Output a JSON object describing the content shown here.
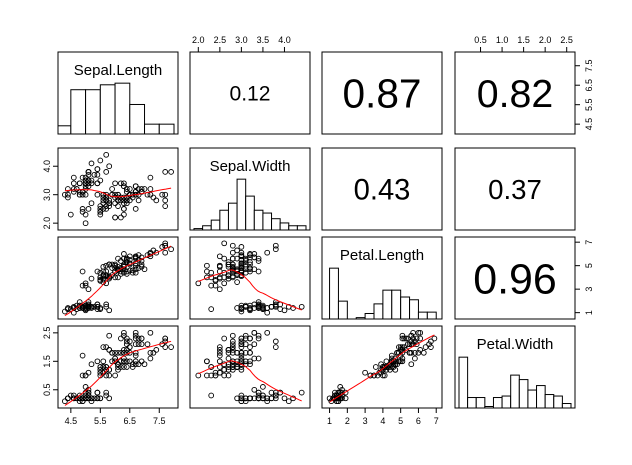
{
  "chart_data": {
    "type": "scatter-matrix",
    "variables": [
      "Sepal.Length",
      "Sepal.Width",
      "Petal.Length",
      "Petal.Width"
    ],
    "correlations": [
      {
        "row": 0,
        "col": 1,
        "text": "0.12",
        "abs": 0.12
      },
      {
        "row": 0,
        "col": 2,
        "text": "0.87",
        "abs": 0.87
      },
      {
        "row": 0,
        "col": 3,
        "text": "0.82",
        "abs": 0.82
      },
      {
        "row": 1,
        "col": 2,
        "text": "0.43",
        "abs": 0.43
      },
      {
        "row": 1,
        "col": 3,
        "text": "0.37",
        "abs": 0.37
      },
      {
        "row": 2,
        "col": 3,
        "text": "0.96",
        "abs": 0.96
      }
    ],
    "axes": [
      {
        "variable": "Sepal.Length",
        "side": "bottom",
        "lim": [
          4.2,
          8.0
        ],
        "ticks": [
          4.5,
          5.5,
          6.5,
          7.5
        ],
        "tick_labels": [
          "4.5",
          "5.5",
          "6.5",
          "7.5"
        ]
      },
      {
        "variable": "Sepal.Width",
        "side": "top",
        "lim": [
          1.9,
          4.5
        ],
        "ticks": [
          2.0,
          2.5,
          3.0,
          3.5,
          4.0
        ],
        "tick_labels": [
          "2.0",
          "2.5",
          "3.0",
          "3.5",
          "4.0"
        ]
      },
      {
        "variable": "Petal.Length",
        "side": "bottom",
        "lim": [
          0.8,
          7.1
        ],
        "ticks": [
          1,
          2,
          3,
          4,
          5,
          6,
          7
        ],
        "tick_labels": [
          "1",
          "2",
          "3",
          "4",
          "5",
          "6",
          "7"
        ]
      },
      {
        "variable": "Petal.Width",
        "side": "top",
        "lim": [
          0.0,
          2.6
        ],
        "ticks": [
          0.5,
          1.0,
          1.5,
          2.0,
          2.5
        ],
        "tick_labels": [
          "0.5",
          "1.0",
          "1.5",
          "2.0",
          "2.5"
        ]
      },
      {
        "variable": "Sepal.Length",
        "side": "right",
        "lim": [
          4.2,
          8.0
        ],
        "ticks": [
          4.5,
          5.5,
          6.5,
          7.5
        ],
        "tick_labels": [
          "4.5",
          "5.5",
          "6.5",
          "7.5"
        ]
      },
      {
        "variable": "Sepal.Width",
        "side": "left",
        "lim": [
          1.9,
          4.5
        ],
        "ticks": [
          2.0,
          3.0,
          4.0
        ],
        "tick_labels": [
          "2.0",
          "3.0",
          "4.0"
        ]
      },
      {
        "variable": "Petal.Length",
        "side": "right",
        "lim": [
          0.8,
          7.1
        ],
        "ticks": [
          1,
          3,
          5,
          7
        ],
        "tick_labels": [
          "1",
          "3",
          "5",
          "7"
        ]
      },
      {
        "variable": "Petal.Width",
        "side": "left",
        "lim": [
          0.0,
          2.6
        ],
        "ticks": [
          0.5,
          1.5,
          2.5
        ],
        "tick_labels": [
          "0.5",
          "1.5",
          "2.5"
        ]
      }
    ],
    "histograms": {
      "Sepal.Length": [
        {
          "from": 4.0,
          "to": 4.5,
          "count": 5
        },
        {
          "from": 4.5,
          "to": 5.0,
          "count": 27
        },
        {
          "from": 5.0,
          "to": 5.5,
          "count": 27
        },
        {
          "from": 5.5,
          "to": 6.0,
          "count": 30
        },
        {
          "from": 6.0,
          "to": 6.5,
          "count": 31
        },
        {
          "from": 6.5,
          "to": 7.0,
          "count": 18
        },
        {
          "from": 7.0,
          "to": 7.5,
          "count": 6
        },
        {
          "from": 7.5,
          "to": 8.0,
          "count": 6
        }
      ],
      "Sepal.Width": [
        {
          "from": 1.9,
          "to": 2.1,
          "count": 1
        },
        {
          "from": 2.1,
          "to": 2.3,
          "count": 3
        },
        {
          "from": 2.3,
          "to": 2.5,
          "count": 7
        },
        {
          "from": 2.5,
          "to": 2.7,
          "count": 14
        },
        {
          "from": 2.7,
          "to": 2.9,
          "count": 19
        },
        {
          "from": 2.9,
          "to": 3.1,
          "count": 36
        },
        {
          "from": 3.1,
          "to": 3.3,
          "count": 24
        },
        {
          "from": 3.3,
          "to": 3.5,
          "count": 14
        },
        {
          "from": 3.5,
          "to": 3.7,
          "count": 12
        },
        {
          "from": 3.7,
          "to": 3.9,
          "count": 8
        },
        {
          "from": 3.9,
          "to": 4.1,
          "count": 5
        },
        {
          "from": 4.1,
          "to": 4.3,
          "count": 3
        },
        {
          "from": 4.3,
          "to": 4.5,
          "count": 3
        }
      ],
      "Petal.Length": [
        {
          "from": 1.0,
          "to": 1.5,
          "count": 37
        },
        {
          "from": 1.5,
          "to": 2.0,
          "count": 13
        },
        {
          "from": 2.5,
          "to": 3.0,
          "count": 1
        },
        {
          "from": 3.0,
          "to": 3.5,
          "count": 4
        },
        {
          "from": 3.5,
          "to": 4.0,
          "count": 11
        },
        {
          "from": 4.0,
          "to": 4.5,
          "count": 21
        },
        {
          "from": 4.5,
          "to": 5.0,
          "count": 21
        },
        {
          "from": 5.0,
          "to": 5.5,
          "count": 16
        },
        {
          "from": 5.5,
          "to": 6.0,
          "count": 14
        },
        {
          "from": 6.0,
          "to": 6.5,
          "count": 5
        },
        {
          "from": 6.5,
          "to": 7.0,
          "count": 5
        }
      ],
      "Petal.Width": [
        {
          "from": 0.0,
          "to": 0.2,
          "count": 34
        },
        {
          "from": 0.2,
          "to": 0.4,
          "count": 7
        },
        {
          "from": 0.4,
          "to": 0.6,
          "count": 7
        },
        {
          "from": 0.6,
          "to": 0.8,
          "count": 1
        },
        {
          "from": 0.8,
          "to": 1.0,
          "count": 7
        },
        {
          "from": 1.0,
          "to": 1.2,
          "count": 8
        },
        {
          "from": 1.2,
          "to": 1.4,
          "count": 22
        },
        {
          "from": 1.4,
          "to": 1.6,
          "count": 19
        },
        {
          "from": 1.6,
          "to": 1.8,
          "count": 12
        },
        {
          "from": 1.8,
          "to": 2.0,
          "count": 15
        },
        {
          "from": 2.0,
          "to": 2.2,
          "count": 9
        },
        {
          "from": 2.2,
          "to": 2.4,
          "count": 8
        },
        {
          "from": 2.4,
          "to": 2.6,
          "count": 3
        }
      ]
    },
    "observations": [
      [
        5.1,
        3.5,
        1.4,
        0.2
      ],
      [
        4.9,
        3.0,
        1.4,
        0.2
      ],
      [
        4.7,
        3.2,
        1.3,
        0.2
      ],
      [
        4.6,
        3.1,
        1.5,
        0.2
      ],
      [
        5.0,
        3.6,
        1.4,
        0.2
      ],
      [
        5.4,
        3.9,
        1.7,
        0.4
      ],
      [
        4.6,
        3.4,
        1.4,
        0.3
      ],
      [
        5.0,
        3.4,
        1.5,
        0.2
      ],
      [
        4.4,
        2.9,
        1.4,
        0.2
      ],
      [
        4.9,
        3.1,
        1.5,
        0.1
      ],
      [
        5.4,
        3.7,
        1.5,
        0.2
      ],
      [
        4.8,
        3.4,
        1.6,
        0.2
      ],
      [
        4.8,
        3.0,
        1.4,
        0.1
      ],
      [
        4.3,
        3.0,
        1.1,
        0.1
      ],
      [
        5.8,
        4.0,
        1.2,
        0.2
      ],
      [
        5.7,
        4.4,
        1.5,
        0.4
      ],
      [
        5.4,
        3.9,
        1.3,
        0.4
      ],
      [
        5.1,
        3.5,
        1.4,
        0.3
      ],
      [
        5.7,
        3.8,
        1.7,
        0.3
      ],
      [
        5.1,
        3.8,
        1.5,
        0.3
      ],
      [
        5.4,
        3.4,
        1.7,
        0.2
      ],
      [
        5.1,
        3.7,
        1.5,
        0.4
      ],
      [
        4.6,
        3.6,
        1.0,
        0.2
      ],
      [
        5.1,
        3.3,
        1.7,
        0.5
      ],
      [
        4.8,
        3.4,
        1.9,
        0.2
      ],
      [
        5.0,
        3.0,
        1.6,
        0.2
      ],
      [
        5.0,
        3.4,
        1.6,
        0.4
      ],
      [
        5.2,
        3.5,
        1.5,
        0.2
      ],
      [
        5.2,
        3.4,
        1.4,
        0.2
      ],
      [
        4.7,
        3.2,
        1.6,
        0.2
      ],
      [
        4.8,
        3.1,
        1.6,
        0.2
      ],
      [
        5.4,
        3.4,
        1.5,
        0.4
      ],
      [
        5.2,
        4.1,
        1.5,
        0.1
      ],
      [
        5.5,
        4.2,
        1.4,
        0.2
      ],
      [
        4.9,
        3.1,
        1.5,
        0.2
      ],
      [
        5.0,
        3.2,
        1.2,
        0.2
      ],
      [
        5.5,
        3.5,
        1.3,
        0.2
      ],
      [
        4.9,
        3.6,
        1.4,
        0.1
      ],
      [
        4.4,
        3.0,
        1.3,
        0.2
      ],
      [
        5.1,
        3.4,
        1.5,
        0.2
      ],
      [
        5.0,
        3.5,
        1.3,
        0.3
      ],
      [
        4.5,
        2.3,
        1.3,
        0.3
      ],
      [
        4.4,
        3.2,
        1.3,
        0.2
      ],
      [
        5.0,
        3.5,
        1.6,
        0.6
      ],
      [
        5.1,
        3.8,
        1.9,
        0.4
      ],
      [
        4.8,
        3.0,
        1.4,
        0.3
      ],
      [
        5.1,
        3.8,
        1.6,
        0.2
      ],
      [
        4.6,
        3.2,
        1.4,
        0.2
      ],
      [
        5.3,
        3.7,
        1.5,
        0.2
      ],
      [
        5.0,
        3.3,
        1.4,
        0.2
      ],
      [
        7.0,
        3.2,
        4.7,
        1.4
      ],
      [
        6.4,
        3.2,
        4.5,
        1.5
      ],
      [
        6.9,
        3.1,
        4.9,
        1.5
      ],
      [
        5.5,
        2.3,
        4.0,
        1.3
      ],
      [
        6.5,
        2.8,
        4.6,
        1.5
      ],
      [
        5.7,
        2.8,
        4.5,
        1.3
      ],
      [
        6.3,
        3.3,
        4.7,
        1.6
      ],
      [
        4.9,
        2.4,
        3.3,
        1.0
      ],
      [
        6.6,
        2.9,
        4.6,
        1.3
      ],
      [
        5.2,
        2.7,
        3.9,
        1.4
      ],
      [
        5.0,
        2.0,
        3.5,
        1.0
      ],
      [
        5.9,
        3.0,
        4.2,
        1.5
      ],
      [
        6.0,
        2.2,
        4.0,
        1.0
      ],
      [
        6.1,
        2.9,
        4.7,
        1.4
      ],
      [
        5.6,
        2.9,
        3.6,
        1.3
      ],
      [
        6.7,
        3.1,
        4.4,
        1.4
      ],
      [
        5.6,
        3.0,
        4.5,
        1.5
      ],
      [
        5.8,
        2.7,
        4.1,
        1.0
      ],
      [
        6.2,
        2.2,
        4.5,
        1.5
      ],
      [
        5.6,
        2.5,
        3.9,
        1.1
      ],
      [
        5.9,
        3.2,
        4.8,
        1.8
      ],
      [
        6.1,
        2.8,
        4.0,
        1.3
      ],
      [
        6.3,
        2.5,
        4.9,
        1.5
      ],
      [
        6.1,
        2.8,
        4.7,
        1.2
      ],
      [
        6.4,
        2.9,
        4.3,
        1.3
      ],
      [
        6.6,
        3.0,
        4.4,
        1.4
      ],
      [
        6.8,
        2.8,
        4.8,
        1.4
      ],
      [
        6.7,
        3.0,
        5.0,
        1.7
      ],
      [
        6.0,
        2.9,
        4.5,
        1.5
      ],
      [
        5.7,
        2.6,
        3.5,
        1.0
      ],
      [
        5.5,
        2.4,
        3.8,
        1.1
      ],
      [
        5.5,
        2.4,
        3.7,
        1.0
      ],
      [
        5.8,
        2.7,
        3.9,
        1.2
      ],
      [
        6.0,
        2.7,
        5.1,
        1.6
      ],
      [
        5.4,
        3.0,
        4.5,
        1.5
      ],
      [
        6.0,
        3.4,
        4.5,
        1.6
      ],
      [
        6.7,
        3.1,
        4.7,
        1.5
      ],
      [
        6.3,
        2.3,
        4.4,
        1.3
      ],
      [
        5.6,
        3.0,
        4.1,
        1.3
      ],
      [
        5.5,
        2.5,
        4.0,
        1.3
      ],
      [
        5.5,
        2.6,
        4.4,
        1.2
      ],
      [
        6.1,
        3.0,
        4.6,
        1.4
      ],
      [
        5.8,
        2.6,
        4.0,
        1.2
      ],
      [
        5.0,
        2.3,
        3.3,
        1.0
      ],
      [
        5.6,
        2.7,
        4.2,
        1.3
      ],
      [
        5.7,
        3.0,
        4.2,
        1.2
      ],
      [
        5.7,
        2.9,
        4.2,
        1.3
      ],
      [
        6.2,
        2.9,
        4.3,
        1.3
      ],
      [
        5.1,
        2.5,
        3.0,
        1.1
      ],
      [
        5.7,
        2.8,
        4.1,
        1.3
      ],
      [
        6.3,
        3.3,
        6.0,
        2.5
      ],
      [
        5.8,
        2.7,
        5.1,
        1.9
      ],
      [
        7.1,
        3.0,
        5.9,
        2.1
      ],
      [
        6.3,
        2.9,
        5.6,
        1.8
      ],
      [
        6.5,
        3.0,
        5.8,
        2.2
      ],
      [
        7.6,
        3.0,
        6.6,
        2.1
      ],
      [
        4.9,
        2.5,
        4.5,
        1.7
      ],
      [
        7.3,
        2.9,
        6.3,
        1.8
      ],
      [
        6.7,
        2.5,
        5.8,
        1.8
      ],
      [
        7.2,
        3.6,
        6.1,
        2.5
      ],
      [
        6.5,
        3.2,
        5.1,
        2.0
      ],
      [
        6.4,
        2.7,
        5.3,
        1.9
      ],
      [
        6.8,
        3.0,
        5.5,
        2.1
      ],
      [
        5.7,
        2.5,
        5.0,
        2.0
      ],
      [
        5.8,
        2.8,
        5.1,
        2.4
      ],
      [
        6.4,
        3.2,
        5.3,
        2.3
      ],
      [
        6.5,
        3.0,
        5.5,
        1.8
      ],
      [
        7.7,
        3.8,
        6.7,
        2.2
      ],
      [
        7.7,
        2.6,
        6.9,
        2.3
      ],
      [
        6.0,
        2.2,
        5.0,
        1.5
      ],
      [
        6.9,
        3.2,
        5.7,
        2.3
      ],
      [
        5.6,
        2.8,
        4.9,
        2.0
      ],
      [
        7.7,
        2.8,
        6.7,
        2.0
      ],
      [
        6.3,
        2.7,
        4.9,
        1.8
      ],
      [
        6.7,
        3.3,
        5.7,
        2.1
      ],
      [
        7.2,
        3.2,
        6.0,
        1.8
      ],
      [
        6.2,
        2.8,
        4.8,
        1.8
      ],
      [
        6.1,
        3.0,
        4.9,
        1.8
      ],
      [
        6.4,
        2.8,
        5.6,
        2.1
      ],
      [
        7.2,
        3.0,
        5.8,
        1.6
      ],
      [
        7.4,
        2.8,
        6.1,
        1.9
      ],
      [
        7.9,
        3.8,
        6.4,
        2.0
      ],
      [
        6.4,
        2.8,
        5.6,
        2.2
      ],
      [
        6.3,
        2.8,
        5.1,
        1.5
      ],
      [
        6.1,
        2.6,
        5.6,
        1.4
      ],
      [
        7.7,
        3.0,
        6.1,
        2.3
      ],
      [
        6.3,
        3.4,
        5.6,
        2.4
      ],
      [
        6.4,
        3.1,
        5.5,
        1.8
      ],
      [
        6.0,
        3.0,
        4.8,
        1.8
      ],
      [
        6.9,
        3.1,
        5.4,
        2.1
      ],
      [
        6.7,
        3.1,
        5.6,
        2.4
      ],
      [
        6.9,
        3.1,
        5.1,
        2.3
      ],
      [
        5.8,
        2.7,
        5.1,
        1.9
      ],
      [
        6.8,
        3.2,
        5.9,
        2.3
      ],
      [
        6.7,
        3.3,
        5.7,
        2.5
      ],
      [
        6.7,
        3.0,
        5.2,
        2.3
      ],
      [
        6.3,
        2.5,
        5.0,
        1.9
      ],
      [
        6.5,
        3.0,
        5.2,
        2.0
      ],
      [
        6.2,
        3.4,
        5.4,
        2.3
      ],
      [
        5.9,
        3.0,
        5.1,
        1.8
      ]
    ],
    "smoother_color": "#ff0000",
    "point_color": "#000000"
  }
}
